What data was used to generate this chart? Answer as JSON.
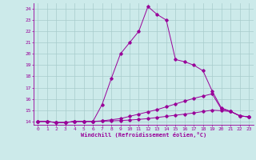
{
  "xlabel": "Windchill (Refroidissement éolien,°C)",
  "background_color": "#cceaea",
  "line_color": "#990099",
  "xlim": [
    -0.5,
    23.5
  ],
  "ylim": [
    13.7,
    24.5
  ],
  "yticks": [
    14,
    15,
    16,
    17,
    18,
    19,
    20,
    21,
    22,
    23,
    24
  ],
  "xticks": [
    0,
    1,
    2,
    3,
    4,
    5,
    6,
    7,
    8,
    9,
    10,
    11,
    12,
    13,
    14,
    15,
    16,
    17,
    18,
    19,
    20,
    21,
    22,
    23
  ],
  "series": [
    {
      "x": [
        0,
        1,
        2,
        3,
        4,
        5,
        6,
        7,
        8,
        9,
        10,
        11,
        12,
        13,
        14,
        15,
        16,
        17,
        18,
        19,
        20,
        21,
        22,
        23
      ],
      "y": [
        14.0,
        14.0,
        13.9,
        13.9,
        14.0,
        14.0,
        14.0,
        15.5,
        17.8,
        20.0,
        21.0,
        22.0,
        24.2,
        23.5,
        23.0,
        19.5,
        19.3,
        19.0,
        18.5,
        16.7,
        15.2,
        14.9,
        14.5,
        14.4
      ]
    },
    {
      "x": [
        0,
        1,
        2,
        3,
        4,
        5,
        6,
        7,
        8,
        9,
        10,
        11,
        12,
        13,
        14,
        15,
        16,
        17,
        18,
        19,
        20,
        21,
        22,
        23
      ],
      "y": [
        14.0,
        14.0,
        13.9,
        13.9,
        14.0,
        14.0,
        14.0,
        14.05,
        14.15,
        14.25,
        14.45,
        14.65,
        14.85,
        15.05,
        15.3,
        15.55,
        15.8,
        16.05,
        16.25,
        16.45,
        15.1,
        14.9,
        14.5,
        14.4
      ]
    },
    {
      "x": [
        0,
        1,
        2,
        3,
        4,
        5,
        6,
        7,
        8,
        9,
        10,
        11,
        12,
        13,
        14,
        15,
        16,
        17,
        18,
        19,
        20,
        21,
        22,
        23
      ],
      "y": [
        14.0,
        14.0,
        13.9,
        13.9,
        14.0,
        14.0,
        14.0,
        14.02,
        14.05,
        14.08,
        14.12,
        14.18,
        14.25,
        14.35,
        14.45,
        14.55,
        14.65,
        14.75,
        14.88,
        15.0,
        14.95,
        14.88,
        14.5,
        14.4
      ]
    }
  ]
}
